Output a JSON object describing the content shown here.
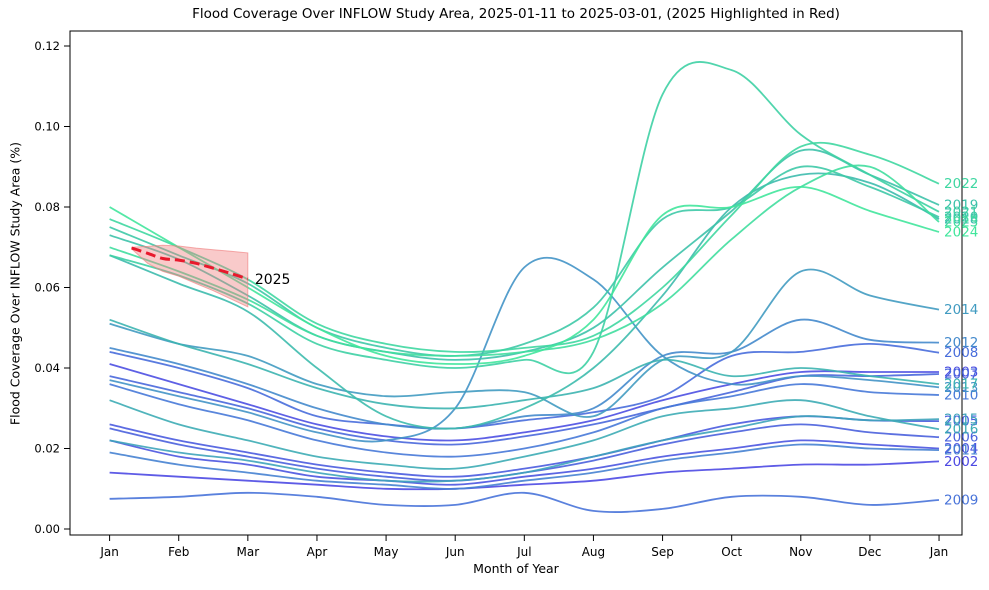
{
  "chart_data": {
    "type": "line",
    "title": "Flood Coverage Over INFLOW Study Area, 2025-01-11 to 2025-03-01, (2025 Highlighted in Red)",
    "xlabel": "Month of Year",
    "ylabel": "Flood Coverage Over INFLOW Study Area (%)",
    "x_tick_labels": [
      "Jan",
      "Feb",
      "Mar",
      "Apr",
      "May",
      "Jun",
      "Jul",
      "Aug",
      "Sep",
      "Oct",
      "Nov",
      "Dec",
      "Jan"
    ],
    "y_ticks": [
      0.0,
      0.02,
      0.04,
      0.06,
      0.08,
      0.1,
      0.12
    ],
    "ylim": [
      -0.0015,
      0.1237
    ],
    "grid": false,
    "legend_position": "end-of-line-labels",
    "series": [
      {
        "name": "2002",
        "color": "#4d49e3",
        "values": [
          0.014,
          0.013,
          0.012,
          0.011,
          0.01,
          0.01,
          0.011,
          0.012,
          0.014,
          0.015,
          0.016,
          0.016,
          0.0168
        ]
      },
      {
        "name": "2003",
        "color": "#4c4fe2",
        "values": [
          0.041,
          0.036,
          0.031,
          0.026,
          0.023,
          0.022,
          0.024,
          0.027,
          0.032,
          0.036,
          0.039,
          0.039,
          0.039
        ]
      },
      {
        "name": "2004",
        "color": "#4b55e0",
        "values": [
          0.022,
          0.018,
          0.016,
          0.013,
          0.012,
          0.011,
          0.013,
          0.015,
          0.018,
          0.02,
          0.022,
          0.021,
          0.02
        ]
      },
      {
        "name": "2005",
        "color": "#4a5bdf",
        "values": [
          0.026,
          0.022,
          0.019,
          0.016,
          0.014,
          0.013,
          0.015,
          0.018,
          0.022,
          0.026,
          0.028,
          0.027,
          0.0268
        ]
      },
      {
        "name": "2006",
        "color": "#4a61dd",
        "values": [
          0.025,
          0.021,
          0.018,
          0.015,
          0.013,
          0.012,
          0.014,
          0.017,
          0.021,
          0.024,
          0.026,
          0.024,
          0.0228
        ]
      },
      {
        "name": "2007",
        "color": "#4967dc",
        "values": [
          0.038,
          0.034,
          0.03,
          0.025,
          0.022,
          0.021,
          0.023,
          0.026,
          0.03,
          0.034,
          0.038,
          0.038,
          0.0385
        ]
      },
      {
        "name": "2008",
        "color": "#486ddb",
        "values": [
          0.044,
          0.04,
          0.035,
          0.028,
          0.026,
          0.025,
          0.027,
          0.029,
          0.033,
          0.043,
          0.044,
          0.046,
          0.0438
        ]
      },
      {
        "name": "2009",
        "color": "#4873d9",
        "values": [
          0.0075,
          0.008,
          0.009,
          0.008,
          0.006,
          0.006,
          0.009,
          0.0045,
          0.005,
          0.008,
          0.008,
          0.006,
          0.0072
        ]
      },
      {
        "name": "2010",
        "color": "#4779d8",
        "values": [
          0.036,
          0.031,
          0.027,
          0.022,
          0.019,
          0.018,
          0.02,
          0.024,
          0.03,
          0.033,
          0.036,
          0.034,
          0.0333
        ]
      },
      {
        "name": "2011",
        "color": "#4682d2",
        "values": [
          0.019,
          0.016,
          0.014,
          0.012,
          0.011,
          0.01,
          0.012,
          0.014,
          0.017,
          0.019,
          0.021,
          0.02,
          0.0196
        ]
      },
      {
        "name": "2012",
        "color": "#448acc",
        "values": [
          0.045,
          0.041,
          0.036,
          0.03,
          0.026,
          0.025,
          0.028,
          0.03,
          0.043,
          0.044,
          0.052,
          0.047,
          0.0463
        ]
      },
      {
        "name": "2013",
        "color": "#4293c6",
        "values": [
          0.037,
          0.033,
          0.029,
          0.024,
          0.022,
          0.03,
          0.065,
          0.062,
          0.043,
          0.036,
          0.038,
          0.037,
          0.0352
        ]
      },
      {
        "name": "2014",
        "color": "#419bc1",
        "values": [
          0.051,
          0.046,
          0.043,
          0.036,
          0.033,
          0.034,
          0.034,
          0.028,
          0.042,
          0.044,
          0.064,
          0.058,
          0.0545
        ]
      },
      {
        "name": "2015",
        "color": "#3fa4bb",
        "values": [
          0.022,
          0.019,
          0.017,
          0.014,
          0.012,
          0.012,
          0.014,
          0.018,
          0.022,
          0.025,
          0.028,
          0.027,
          0.0273
        ]
      },
      {
        "name": "2016",
        "color": "#3dacb5",
        "values": [
          0.032,
          0.026,
          0.022,
          0.018,
          0.016,
          0.015,
          0.018,
          0.022,
          0.028,
          0.03,
          0.032,
          0.028,
          0.0248
        ]
      },
      {
        "name": "2017",
        "color": "#3cb4b0",
        "values": [
          0.052,
          0.046,
          0.041,
          0.035,
          0.031,
          0.03,
          0.032,
          0.035,
          0.042,
          0.038,
          0.04,
          0.038,
          0.036
        ]
      },
      {
        "name": "2018",
        "color": "#3dbbad",
        "values": [
          0.068,
          0.061,
          0.054,
          0.04,
          0.028,
          0.025,
          0.03,
          0.04,
          0.058,
          0.08,
          0.088,
          0.086,
          0.077
        ]
      },
      {
        "name": "2019",
        "color": "#3dc2aa",
        "values": [
          0.073,
          0.067,
          0.058,
          0.048,
          0.044,
          0.042,
          0.044,
          0.05,
          0.065,
          0.079,
          0.094,
          0.088,
          0.0805
        ]
      },
      {
        "name": "2020",
        "color": "#3ec9a7",
        "values": [
          0.075,
          0.068,
          0.061,
          0.05,
          0.045,
          0.043,
          0.046,
          0.055,
          0.077,
          0.08,
          0.09,
          0.085,
          0.0775
        ]
      },
      {
        "name": "2021",
        "color": "#3ed0a4",
        "values": [
          0.068,
          0.063,
          0.056,
          0.046,
          0.042,
          0.04,
          0.042,
          0.044,
          0.108,
          0.114,
          0.098,
          0.088,
          0.0788
        ]
      },
      {
        "name": "2022",
        "color": "#3fd7a1",
        "values": [
          0.077,
          0.07,
          0.062,
          0.051,
          0.046,
          0.044,
          0.045,
          0.048,
          0.06,
          0.078,
          0.095,
          0.093,
          0.0858
        ]
      },
      {
        "name": "2023",
        "color": "#40de9e",
        "values": [
          0.07,
          0.064,
          0.057,
          0.048,
          0.044,
          0.043,
          0.044,
          0.047,
          0.056,
          0.072,
          0.085,
          0.09,
          0.0763
        ]
      },
      {
        "name": "2024",
        "color": "#41e69c",
        "values": [
          0.08,
          0.07,
          0.06,
          0.05,
          0.043,
          0.041,
          0.043,
          0.052,
          0.078,
          0.08,
          0.085,
          0.079,
          0.0738
        ]
      }
    ],
    "highlight": {
      "name": "2025",
      "annotation": "2025",
      "annotation_color": "#000000",
      "color": "#e8192c",
      "band_color": "#f08080",
      "date_range": "2025-01-11 to 2025-03-01",
      "x_months": [
        0.32,
        0.55,
        0.77,
        1.0,
        1.25,
        1.5,
        1.75,
        2.0
      ],
      "values": [
        0.0698,
        0.0685,
        0.0672,
        0.0668,
        0.066,
        0.0648,
        0.0635,
        0.0621
      ],
      "band_upper": [
        0.07,
        0.0702,
        0.0705,
        0.0703,
        0.0698,
        0.0694,
        0.069,
        0.0686
      ],
      "band_lower": [
        0.0696,
        0.066,
        0.064,
        0.0628,
        0.061,
        0.0592,
        0.0572,
        0.0552
      ]
    },
    "axis_color": "#000000",
    "background_color": "#ffffff"
  }
}
